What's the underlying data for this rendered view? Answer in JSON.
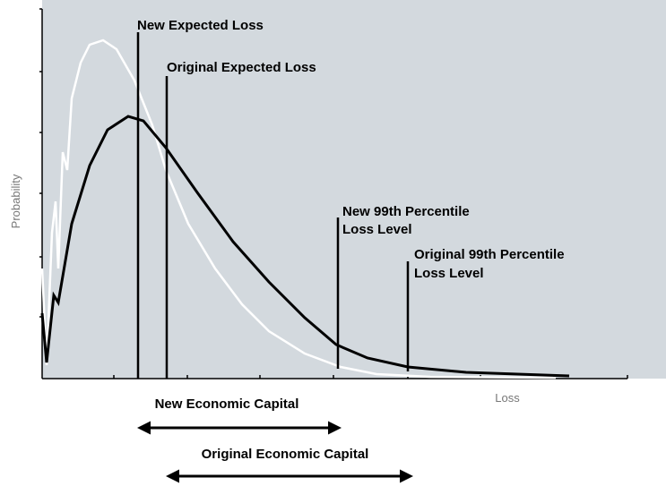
{
  "title_new_expected_loss": "New Expected Loss",
  "title_original_expected_loss": "Original Expected Loss",
  "new_percentile": [
    "New 99th Percentile",
    "Loss Level"
  ],
  "original_percentile": [
    "Original 99th Percentile",
    "Loss Level"
  ],
  "y_axis_label": "Probability",
  "x_axis_label": "Loss",
  "new_capital": "New Economic Capital",
  "original_capital": "Original Economic Capital"
}
